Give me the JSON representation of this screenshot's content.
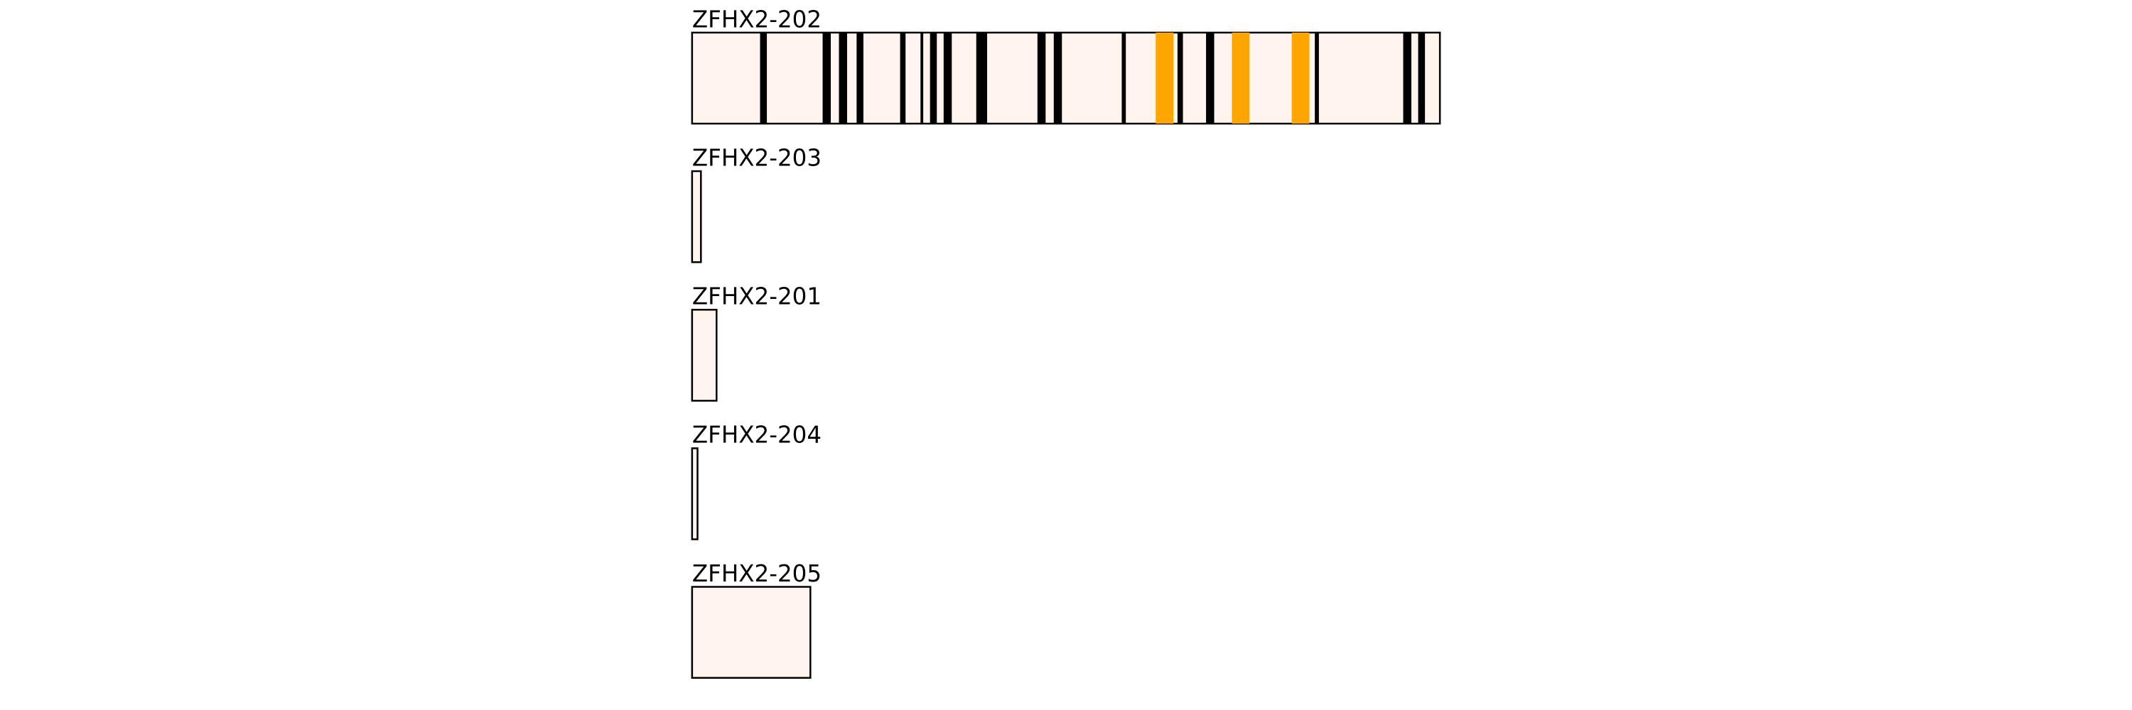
{
  "transcripts": [
    {
      "label": "ZFHX2-202"
    },
    {
      "label": "ZFHX2-203"
    },
    {
      "label": "ZFHX2-201"
    },
    {
      "label": "ZFHX2-204"
    },
    {
      "label": "ZFHX2-205"
    }
  ]
}
